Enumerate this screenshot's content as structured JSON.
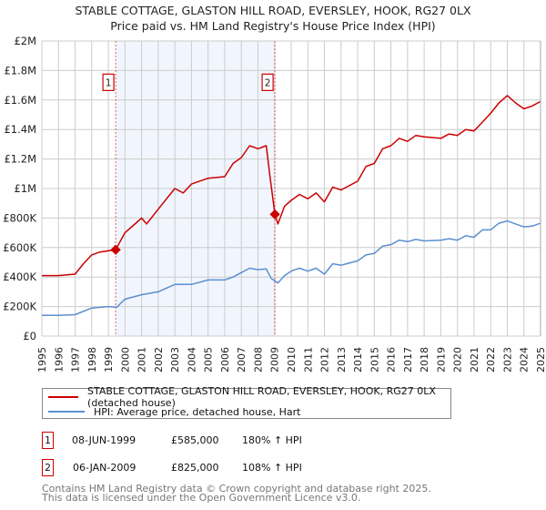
{
  "chart_data": {
    "type": "line",
    "title": "STABLE COTTAGE, GLASTON HILL ROAD, EVERSLEY, HOOK, RG27 0LX",
    "subtitle": "Price paid vs. HM Land Registry's House Price Index (HPI)",
    "xlabel": "",
    "ylabel": "",
    "xlim": [
      1995,
      2025
    ],
    "ylim": [
      0,
      2000000
    ],
    "grid": true,
    "x_ticks": [
      "1995",
      "1996",
      "1997",
      "1998",
      "1999",
      "2000",
      "2001",
      "2002",
      "2003",
      "2004",
      "2005",
      "2006",
      "2007",
      "2008",
      "2009",
      "2010",
      "2011",
      "2012",
      "2013",
      "2014",
      "2015",
      "2016",
      "2017",
      "2018",
      "2019",
      "2020",
      "2021",
      "2022",
      "2023",
      "2024",
      "2025"
    ],
    "y_ticks": [
      {
        "value": 0,
        "label": "£0"
      },
      {
        "value": 200000,
        "label": "£200K"
      },
      {
        "value": 400000,
        "label": "£400K"
      },
      {
        "value": 600000,
        "label": "£600K"
      },
      {
        "value": 800000,
        "label": "£800K"
      },
      {
        "value": 1000000,
        "label": "£1M"
      },
      {
        "value": 1200000,
        "label": "£1.2M"
      },
      {
        "value": 1400000,
        "label": "£1.4M"
      },
      {
        "value": 1600000,
        "label": "£1.6M"
      },
      {
        "value": 1800000,
        "label": "£1.8M"
      },
      {
        "value": 2000000,
        "label": "£2M"
      }
    ],
    "shaded_range": [
      1999.44,
      2009.02
    ],
    "series": [
      {
        "name": "STABLE COTTAGE, GLASTON HILL ROAD, EVERSLEY, HOOK, RG27 0LX (detached house)",
        "color": "#cc0000",
        "x": [
          1995,
          1996,
          1997,
          1997.5,
          1998,
          1998.5,
          1999.44,
          2000,
          2000.5,
          2001,
          2001.3,
          2002,
          2002.5,
          2003,
          2003.5,
          2004,
          2005,
          2006,
          2006.5,
          2007,
          2007.5,
          2008,
          2008.5,
          2008.7,
          2009.02,
          2009.2,
          2009.6,
          2010,
          2010.5,
          2011,
          2011.5,
          2012,
          2012.5,
          2013,
          2013.5,
          2014,
          2014.5,
          2015,
          2015.5,
          2016,
          2016.5,
          2017,
          2017.5,
          2018,
          2019,
          2019.5,
          2020,
          2020.5,
          2021,
          2021.5,
          2022,
          2022.5,
          2023,
          2023.5,
          2024,
          2024.5,
          2025
        ],
        "values": [
          410000,
          410000,
          420000,
          490000,
          550000,
          570000,
          585000,
          700000,
          750000,
          800000,
          760000,
          860000,
          930000,
          1000000,
          970000,
          1030000,
          1070000,
          1080000,
          1170000,
          1210000,
          1290000,
          1270000,
          1290000,
          1100000,
          825000,
          760000,
          880000,
          920000,
          960000,
          930000,
          970000,
          910000,
          1010000,
          990000,
          1020000,
          1050000,
          1150000,
          1170000,
          1270000,
          1290000,
          1340000,
          1320000,
          1360000,
          1350000,
          1340000,
          1370000,
          1360000,
          1400000,
          1390000,
          1450000,
          1510000,
          1580000,
          1630000,
          1580000,
          1540000,
          1560000,
          1590000
        ]
      },
      {
        "name": "HPI: Average price, detached house, Hart",
        "color": "#5b8fd0",
        "x": [
          1995,
          1996,
          1997,
          1998,
          1999,
          1999.5,
          2000,
          2001,
          2002,
          2003,
          2004,
          2005,
          2006,
          2006.5,
          2007,
          2007.5,
          2008,
          2008.5,
          2008.8,
          2009.2,
          2009.6,
          2010,
          2010.5,
          2011,
          2011.5,
          2012,
          2012.5,
          2013,
          2014,
          2014.5,
          2015,
          2015.5,
          2016,
          2016.5,
          2017,
          2017.5,
          2018,
          2019,
          2019.5,
          2020,
          2020.5,
          2021,
          2021.5,
          2022,
          2022.5,
          2023,
          2023.5,
          2024,
          2024.5,
          2025
        ],
        "values": [
          140000,
          140000,
          145000,
          190000,
          200000,
          195000,
          250000,
          280000,
          300000,
          350000,
          350000,
          380000,
          380000,
          400000,
          430000,
          460000,
          450000,
          455000,
          390000,
          360000,
          410000,
          440000,
          460000,
          440000,
          460000,
          420000,
          490000,
          480000,
          510000,
          550000,
          560000,
          610000,
          620000,
          650000,
          640000,
          655000,
          645000,
          650000,
          660000,
          650000,
          680000,
          670000,
          720000,
          720000,
          765000,
          780000,
          760000,
          740000,
          745000,
          765000
        ]
      }
    ],
    "sales": [
      {
        "id": "1",
        "x": 1999.44,
        "value": 585000
      },
      {
        "id": "2",
        "x": 2009.02,
        "value": 825000
      }
    ]
  },
  "legend": {
    "property_label": "STABLE COTTAGE, GLASTON HILL ROAD, EVERSLEY, HOOK, RG27 0LX (detached house)",
    "hpi_label": "HPI: Average price, detached house, Hart"
  },
  "transactions": [
    {
      "id": "1",
      "date": "08-JUN-1999",
      "price": "£585,000",
      "hpi": "180% ↑ HPI"
    },
    {
      "id": "2",
      "date": "06-JAN-2009",
      "price": "£825,000",
      "hpi": "108% ↑ HPI"
    }
  ],
  "footer": {
    "line1": "Contains HM Land Registry data © Crown copyright and database right 2025.",
    "line2": "This data is licensed under the Open Government Licence v3.0."
  }
}
